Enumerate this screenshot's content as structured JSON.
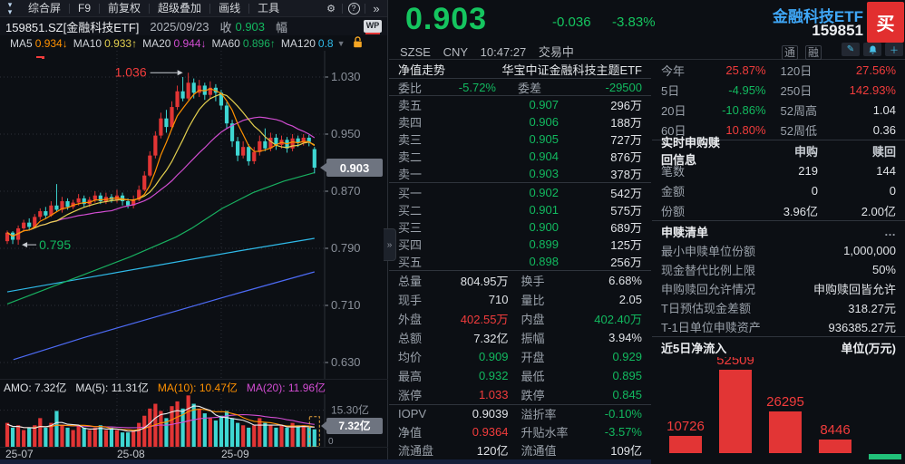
{
  "colors": {
    "up": "#e23535",
    "down": "#3ed6d2",
    "red": "#f23c3c",
    "green": "#12b95f",
    "white": "#dfe2e6",
    "ma5": "#ff9100",
    "ma10": "#e3cf4e",
    "ma20": "#d24dd2",
    "ma60": "#18b060",
    "ma120": "#2fb9e8",
    "ma250": "#4d6bf5",
    "axis": "#8a909a",
    "grid": "#2b2f37",
    "badge": "#6e7480",
    "accent": "#3fa7f7"
  },
  "left": {
    "menu": {
      "items": [
        "综合屏",
        "F9",
        "前复权",
        "超级叠加",
        "画线",
        "工具"
      ],
      "gear": "⚙",
      "help": "?",
      "chevrons": "»"
    },
    "info": {
      "symbol": "159851.SZ[金融科技ETF]",
      "date": "2025/09/23",
      "close_label": "收",
      "close": "0.903",
      "range_label": "幅",
      "wp": "WP"
    },
    "ma_row": [
      {
        "label": "MA5",
        "value": "0.934",
        "arrow": "↓",
        "c": "ma5"
      },
      {
        "label": "MA10",
        "value": "0.933",
        "arrow": "↑",
        "c": "ma10"
      },
      {
        "label": "MA20",
        "value": "0.944",
        "arrow": "↓",
        "c": "ma20"
      },
      {
        "label": "MA60",
        "value": "0.896",
        "arrow": "↑",
        "c": "ma60"
      },
      {
        "label": "MA120",
        "value": "0.8",
        "arrow": "",
        "c": "ma120"
      }
    ],
    "chart": {
      "y_ticks": [
        {
          "label": "1.030",
          "price": 1.03
        },
        {
          "label": "0.950",
          "price": 0.95
        },
        {
          "label": "0.870",
          "price": 0.87
        },
        {
          "label": "0.790",
          "price": 0.79
        },
        {
          "label": "0.710",
          "price": 0.71
        },
        {
          "label": "0.630",
          "price": 0.63
        }
      ],
      "price_badge": "0.903",
      "badge_price": 0.903,
      "high_annotation": "1.036",
      "high_price": 1.036,
      "high_index": 33,
      "low_annotation": "0.795",
      "low_price": 0.795,
      "low_index": 2,
      "month_indices": [
        20,
        39
      ],
      "x_labels": [
        "25-07",
        "25-08",
        "25-09"
      ],
      "ohlc": [
        [
          0.8,
          0.815,
          0.796,
          0.812
        ],
        [
          0.812,
          0.814,
          0.796,
          0.802
        ],
        [
          0.802,
          0.822,
          0.795,
          0.818
        ],
        [
          0.818,
          0.83,
          0.815,
          0.826
        ],
        [
          0.826,
          0.832,
          0.816,
          0.82
        ],
        [
          0.82,
          0.838,
          0.818,
          0.834
        ],
        [
          0.834,
          0.846,
          0.83,
          0.842
        ],
        [
          0.842,
          0.848,
          0.832,
          0.836
        ],
        [
          0.836,
          0.856,
          0.834,
          0.85
        ],
        [
          0.85,
          0.88,
          0.842,
          0.844
        ],
        [
          0.844,
          0.862,
          0.84,
          0.856
        ],
        [
          0.856,
          0.86,
          0.844,
          0.848
        ],
        [
          0.848,
          0.858,
          0.845,
          0.854
        ],
        [
          0.854,
          0.866,
          0.85,
          0.86
        ],
        [
          0.86,
          0.864,
          0.848,
          0.852
        ],
        [
          0.852,
          0.862,
          0.848,
          0.858
        ],
        [
          0.858,
          0.87,
          0.854,
          0.864
        ],
        [
          0.864,
          0.868,
          0.852,
          0.856
        ],
        [
          0.856,
          0.868,
          0.852,
          0.862
        ],
        [
          0.862,
          0.866,
          0.854,
          0.858
        ],
        [
          0.858,
          0.872,
          0.854,
          0.864
        ],
        [
          0.864,
          0.868,
          0.85,
          0.856
        ],
        [
          0.856,
          0.86,
          0.846,
          0.85
        ],
        [
          0.85,
          0.864,
          0.846,
          0.858
        ],
        [
          0.858,
          0.878,
          0.856,
          0.872
        ],
        [
          0.872,
          0.898,
          0.87,
          0.892
        ],
        [
          0.892,
          0.926,
          0.89,
          0.92
        ],
        [
          0.92,
          0.954,
          0.916,
          0.948
        ],
        [
          0.948,
          0.98,
          0.944,
          0.972
        ],
        [
          0.972,
          0.984,
          0.952,
          0.96
        ],
        [
          0.96,
          0.996,
          0.956,
          0.988
        ],
        [
          0.988,
          1.018,
          0.984,
          1.01
        ],
        [
          1.01,
          1.03,
          0.996,
          1.0
        ],
        [
          1.0,
          1.036,
          0.998,
          1.022
        ],
        [
          1.022,
          1.028,
          1.0,
          1.008
        ],
        [
          1.008,
          1.026,
          1.002,
          1.018
        ],
        [
          1.018,
          1.022,
          0.998,
          1.005
        ],
        [
          1.005,
          1.024,
          1.0,
          1.015
        ],
        [
          1.015,
          1.02,
          0.996,
          1.008
        ],
        [
          1.008,
          1.012,
          0.984,
          0.99
        ],
        [
          0.99,
          0.995,
          0.958,
          0.965
        ],
        [
          0.965,
          0.97,
          0.932,
          0.94
        ],
        [
          0.94,
          0.946,
          0.912,
          0.92
        ],
        [
          0.92,
          0.94,
          0.916,
          0.932
        ],
        [
          0.932,
          0.936,
          0.906,
          0.912
        ],
        [
          0.912,
          0.932,
          0.908,
          0.925
        ],
        [
          0.925,
          0.948,
          0.92,
          0.94
        ],
        [
          0.94,
          0.958,
          0.926,
          0.93
        ],
        [
          0.93,
          0.952,
          0.926,
          0.945
        ],
        [
          0.945,
          0.95,
          0.928,
          0.935
        ],
        [
          0.935,
          0.948,
          0.93,
          0.942
        ],
        [
          0.942,
          0.946,
          0.924,
          0.93
        ],
        [
          0.93,
          0.95,
          0.926,
          0.944
        ],
        [
          0.944,
          0.948,
          0.932,
          0.938
        ],
        [
          0.938,
          0.95,
          0.934,
          0.945
        ],
        [
          0.945,
          0.949,
          0.933,
          0.939
        ],
        [
          0.929,
          0.932,
          0.895,
          0.903
        ]
      ],
      "volumes": [
        10,
        8,
        9,
        7,
        8,
        9,
        12,
        8,
        10,
        15,
        9,
        8,
        7,
        9,
        8,
        7,
        8,
        9,
        7,
        8,
        7,
        6,
        6,
        7,
        10,
        13,
        16,
        18,
        15,
        12,
        17,
        19,
        16,
        21.5,
        18,
        16,
        14,
        12,
        11,
        13,
        15,
        12,
        10,
        9,
        8,
        9,
        12,
        10,
        9,
        8,
        9,
        8,
        10,
        9,
        9,
        8,
        7.3
      ],
      "ma60": [
        [
          0,
          0.712
        ],
        [
          0.2,
          0.745
        ],
        [
          0.4,
          0.778
        ],
        [
          0.55,
          0.806
        ],
        [
          0.6,
          0.818
        ],
        [
          0.7,
          0.846
        ],
        [
          0.8,
          0.868
        ],
        [
          0.9,
          0.884
        ],
        [
          1,
          0.896
        ]
      ],
      "ma120": [
        [
          0,
          0.729
        ],
        [
          0.25,
          0.748
        ],
        [
          0.5,
          0.767
        ],
        [
          0.75,
          0.786
        ],
        [
          1,
          0.804
        ]
      ],
      "ma250": [
        [
          0.02,
          0.634
        ],
        [
          0.25,
          0.665
        ],
        [
          0.5,
          0.696
        ],
        [
          0.75,
          0.727
        ],
        [
          1,
          0.757
        ]
      ]
    },
    "amo_items": [
      {
        "t": "AMO: 7.32亿",
        "c": "w"
      },
      {
        "t": "MA(5): 11.31亿",
        "c": "w"
      },
      {
        "t": "MA(10): 10.47亿",
        "c": "o"
      },
      {
        "t": "MA(20): 11.96亿",
        "c": "m"
      }
    ],
    "vol_axis": {
      "top_label": "15.30亿",
      "top_value": 15.3,
      "badge": "7.32亿",
      "zero": "0",
      "scale_max": 22
    }
  },
  "header": {
    "price": "0.903",
    "change": "-0.036",
    "pct": "-3.83%",
    "name": "金融科技ETF",
    "code": "159851",
    "buy": "买",
    "exchange": "SZSE",
    "currency": "CNY",
    "time": "10:47:27",
    "status": "交易中",
    "tags": [
      "通",
      "融"
    ],
    "icons": [
      "pencil",
      "bell",
      "plus"
    ]
  },
  "quote": {
    "nav_label": "净值走势",
    "full_name": "华宝中证金融科技主题ETF",
    "weibi_label": "委比",
    "weibi": "-5.72%",
    "weicha_label": "委差",
    "weicha": "-29500",
    "asks": [
      {
        "label": "卖五",
        "price": "0.907",
        "vol": "296万"
      },
      {
        "label": "卖四",
        "price": "0.906",
        "vol": "188万"
      },
      {
        "label": "卖三",
        "price": "0.905",
        "vol": "727万"
      },
      {
        "label": "卖二",
        "price": "0.904",
        "vol": "876万"
      },
      {
        "label": "卖一",
        "price": "0.903",
        "vol": "378万"
      }
    ],
    "bids": [
      {
        "label": "买一",
        "price": "0.902",
        "vol": "542万"
      },
      {
        "label": "买二",
        "price": "0.901",
        "vol": "575万"
      },
      {
        "label": "买三",
        "price": "0.900",
        "vol": "689万"
      },
      {
        "label": "买四",
        "price": "0.899",
        "vol": "125万"
      },
      {
        "label": "买五",
        "price": "0.898",
        "vol": "256万"
      }
    ],
    "stats": [
      [
        {
          "l": "总量",
          "v": "804.95万",
          "c": "w"
        },
        {
          "l": "换手",
          "v": "6.68%",
          "c": "w"
        }
      ],
      [
        {
          "l": "现手",
          "v": "710",
          "c": "w"
        },
        {
          "l": "量比",
          "v": "2.05",
          "c": "w"
        }
      ],
      [
        {
          "l": "外盘",
          "v": "402.55万",
          "c": "r"
        },
        {
          "l": "内盘",
          "v": "402.40万",
          "c": "g"
        }
      ],
      [
        {
          "l": "总额",
          "v": "7.32亿",
          "c": "w"
        },
        {
          "l": "振幅",
          "v": "3.94%",
          "c": "w"
        }
      ],
      [
        {
          "l": "均价",
          "v": "0.909",
          "c": "g"
        },
        {
          "l": "开盘",
          "v": "0.929",
          "c": "g"
        }
      ],
      [
        {
          "l": "最高",
          "v": "0.932",
          "c": "g"
        },
        {
          "l": "最低",
          "v": "0.895",
          "c": "g"
        }
      ],
      [
        {
          "l": "涨停",
          "v": "1.033",
          "c": "r"
        },
        {
          "l": "跌停",
          "v": "0.845",
          "c": "g"
        }
      ]
    ],
    "iopv_rows": [
      [
        {
          "l": "IOPV",
          "v": "0.9039",
          "c": "w"
        },
        {
          "l": "溢折率",
          "v": "-0.10%",
          "c": "g"
        }
      ],
      [
        {
          "l": "净值",
          "v": "0.9364",
          "c": "r"
        },
        {
          "l": "升贴水率",
          "v": "-3.57%",
          "c": "g"
        }
      ],
      [
        {
          "l": "流通盘",
          "v": "120亿",
          "c": "w"
        },
        {
          "l": "流通值",
          "v": "109亿",
          "c": "w"
        }
      ]
    ]
  },
  "right": {
    "perf": [
      [
        {
          "l": "今年",
          "v": "25.87%",
          "c": "r"
        },
        {
          "l": "120日",
          "v": "27.56%",
          "c": "r"
        }
      ],
      [
        {
          "l": "5日",
          "v": "-4.95%",
          "c": "g"
        },
        {
          "l": "250日",
          "v": "142.93%",
          "c": "r"
        }
      ],
      [
        {
          "l": "20日",
          "v": "-10.86%",
          "c": "g"
        },
        {
          "l": "52周高",
          "v": "1.04",
          "c": "w"
        }
      ],
      [
        {
          "l": "60日",
          "v": "10.80%",
          "c": "r"
        },
        {
          "l": "52周低",
          "v": "0.36",
          "c": "w"
        }
      ]
    ],
    "subs_header": {
      "title": "实时申购赎回信息",
      "col1": "申购",
      "col2": "赎回"
    },
    "subs_rows": [
      {
        "l": "笔数",
        "v1": "219",
        "v2": "144"
      },
      {
        "l": "金额",
        "v1": "0",
        "v2": "0"
      },
      {
        "l": "份额",
        "v1": "3.96亿",
        "v2": "2.00亿"
      }
    ],
    "list_header": {
      "title": "申赎清单",
      "more": "…"
    },
    "list_rows": [
      {
        "l": "最小申赎单位份额",
        "v": "1,000,000"
      },
      {
        "l": "现金替代比例上限",
        "v": "50%"
      },
      {
        "l": "申购赎回允许情况",
        "v": "申购赎回皆允许"
      },
      {
        "l": "T日预估现金差额",
        "v": "318.27元"
      },
      {
        "l": "T-1日单位申赎资产",
        "v": "936385.27元"
      }
    ],
    "flow_header": {
      "title": "近5日净流入",
      "unit": "单位(万元)"
    },
    "flow_chart": {
      "type": "bar",
      "bars": [
        {
          "label": "10726",
          "value": 10726,
          "dir": "up"
        },
        {
          "label": "52509",
          "value": 52509,
          "dir": "up"
        },
        {
          "label": "26295",
          "value": 26295,
          "dir": "up"
        },
        {
          "label": "8446",
          "value": 8446,
          "dir": "up"
        },
        {
          "label": "",
          "value": -3500,
          "dir": "down"
        }
      ]
    }
  },
  "expander": "»"
}
